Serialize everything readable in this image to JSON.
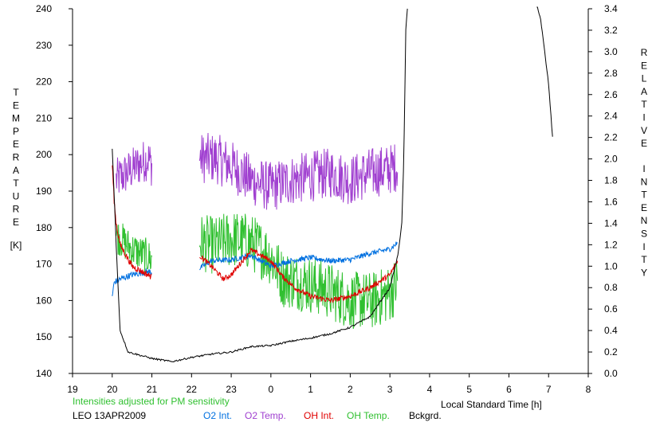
{
  "chart_data": {
    "type": "line",
    "xlabel": "Local Standard Time [h]",
    "x_tick_labels": [
      "19",
      "20",
      "21",
      "22",
      "23",
      "0",
      "1",
      "2",
      "3",
      "4",
      "5",
      "6",
      "7",
      "8"
    ],
    "xlim": [
      19,
      32
    ],
    "left_axis": {
      "label_letters": [
        "T",
        "E",
        "M",
        "P",
        "E",
        "R",
        "A",
        "T",
        "U",
        "R",
        "E"
      ],
      "unit": "[K]",
      "ylim": [
        140,
        240
      ],
      "ticks": [
        140,
        150,
        160,
        170,
        180,
        190,
        200,
        210,
        220,
        230,
        240
      ]
    },
    "right_axis": {
      "label_letters_1": [
        "R",
        "E",
        "L",
        "A",
        "T",
        "I",
        "V",
        "E"
      ],
      "label_letters_2": [
        "I",
        "N",
        "T",
        "E",
        "N",
        "S",
        "I",
        "T",
        "Y"
      ],
      "ylim": [
        0.0,
        3.4
      ],
      "ticks": [
        "0.0",
        "0.2",
        "0.4",
        "0.6",
        "0.8",
        "1.0",
        "1.2",
        "1.4",
        "1.6",
        "1.8",
        "2.0",
        "2.2",
        "2.4",
        "2.6",
        "2.8",
        "3.0",
        "3.2",
        "3.4"
      ]
    },
    "note": "Intensities adjusted for PM sensitivity",
    "site_label": "LEO 13APR2009",
    "legend": [
      {
        "name": "O2 Int.",
        "color": "#0070e0"
      },
      {
        "name": "O2 Temp.",
        "color": "#a040d0"
      },
      {
        "name": "OH Int.",
        "color": "#e00000"
      },
      {
        "name": "OH Temp.",
        "color": "#30c030"
      },
      {
        "name": "Bckgrd.",
        "color": "#000000"
      }
    ],
    "series": [
      {
        "name": "O2 Temp.",
        "axis": "left",
        "color": "#a040d0",
        "segments": [
          {
            "x": [
              20.1,
              20.5,
              20.9,
              21.0
            ],
            "y": [
              193,
              196,
              199,
              197
            ],
            "noise": 6
          },
          {
            "x": [
              22.2,
              22.6,
              23.0,
              23.5,
              24.0,
              24.5,
              25.0,
              25.5,
              26.0,
              26.5,
              27.0,
              27.2
            ],
            "y": [
              199,
              199,
              197,
              193,
              191,
              193,
              194,
              195,
              193,
              195,
              196,
              197
            ],
            "noise": 7
          }
        ]
      },
      {
        "name": "OH Temp.",
        "axis": "left",
        "color": "#30c030",
        "segments": [
          {
            "x": [
              20.1,
              20.5,
              20.9,
              21.0
            ],
            "y": [
              178,
              174,
              172,
              171
            ],
            "noise": 5
          },
          {
            "x": [
              22.2,
              22.6,
              23.0,
              23.5,
              24.0,
              24.3,
              24.8,
              25.4,
              26.0,
              26.6,
              27.0,
              27.2
            ],
            "y": [
              176,
              175,
              177,
              176,
              172,
              166,
              165,
              163,
              160,
              160,
              162,
              165
            ],
            "noise": 8
          }
        ]
      },
      {
        "name": "O2 Int.",
        "axis": "right",
        "color": "#0070e0",
        "segments": [
          {
            "x": [
              20.0,
              20.05,
              20.2,
              20.5,
              20.9,
              21.0
            ],
            "y": [
              0.72,
              0.85,
              0.88,
              0.92,
              0.95,
              0.94
            ],
            "noise": 0.03
          },
          {
            "x": [
              22.2,
              22.5,
              23.0,
              23.5,
              24.0,
              24.5,
              25.0,
              25.5,
              26.0,
              26.5,
              27.0,
              27.2
            ],
            "y": [
              0.98,
              1.05,
              1.06,
              1.1,
              1.0,
              1.05,
              1.08,
              1.05,
              1.06,
              1.12,
              1.16,
              1.22
            ],
            "noise": 0.025
          }
        ]
      },
      {
        "name": "OH Int.",
        "axis": "right",
        "color": "#e00000",
        "segments": [
          {
            "x": [
              20.0,
              20.05,
              20.1,
              20.2,
              20.5,
              20.9,
              21.0
            ],
            "y": [
              1.95,
              1.6,
              1.4,
              1.2,
              1.0,
              0.92,
              0.9
            ],
            "noise": 0.03
          },
          {
            "x": [
              22.2,
              22.5,
              22.8,
              23.0,
              23.5,
              24.0,
              24.3,
              24.6,
              25.0,
              25.5,
              26.0,
              26.5,
              27.0,
              27.2
            ],
            "y": [
              1.1,
              1.0,
              0.88,
              0.92,
              1.15,
              1.05,
              0.9,
              0.8,
              0.72,
              0.68,
              0.72,
              0.8,
              0.92,
              1.05
            ],
            "noise": 0.025
          }
        ]
      },
      {
        "name": "Bckgrd.",
        "axis": "right",
        "color": "#000000",
        "segments": [
          {
            "x": [
              20.0,
              20.1,
              20.2,
              20.4,
              21.0,
              21.5,
              22.0,
              22.5,
              23.0,
              23.5,
              24.0,
              24.5,
              25.0,
              25.5,
              26.0,
              26.5,
              27.0,
              27.2,
              27.3,
              27.35,
              27.4,
              27.45
            ],
            "y": [
              2.1,
              1.2,
              0.4,
              0.2,
              0.14,
              0.11,
              0.15,
              0.18,
              0.2,
              0.25,
              0.26,
              0.3,
              0.33,
              0.37,
              0.43,
              0.53,
              0.8,
              1.1,
              1.4,
              2.0,
              3.2,
              3.45
            ],
            "noise": 0.008
          },
          {
            "x": [
              30.7,
              30.8,
              31.0,
              31.1
            ],
            "y": [
              3.45,
              3.3,
              2.7,
              2.2
            ],
            "noise": 0.01
          }
        ]
      }
    ]
  }
}
